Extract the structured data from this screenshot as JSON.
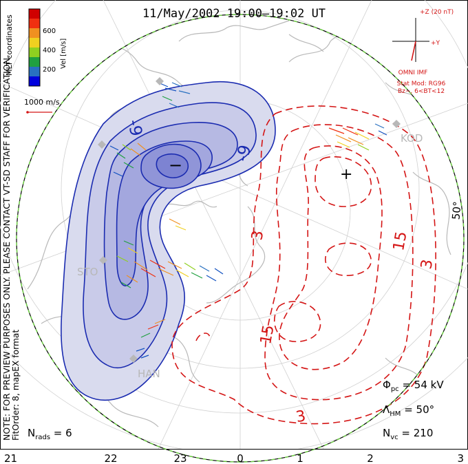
{
  "title": "11/May/2002  19:00–19:02  UT",
  "colorbar": {
    "ticks": [
      "600",
      "400",
      "200"
    ],
    "unit_label": "Vel [m/s]",
    "colors": [
      "#0000dd",
      "#2870c0",
      "#20a040",
      "#90d020",
      "#f0d020",
      "#f09020",
      "#f03010",
      "#d00000"
    ]
  },
  "coords_label": "MLT coordinates",
  "scale_label": "1000 m/s",
  "side_note_1": "NOTE: FOR PREVIEW PURPOSES ONLY. PLEASE CONTACT VT-SD STAFF FOR VERIFICATION.",
  "side_note_2": "FitOrder: 8, mapEX format",
  "imf": {
    "z_label": "+Z (20 nT)",
    "y_label": "+Y",
    "source": "OMNI IMF",
    "stat_mod": "Stat Mod: RG96",
    "condition": "Bz−, 6<BT<12"
  },
  "contour_labels": [
    "-9",
    "-9",
    "3",
    "3",
    "15",
    "15",
    "3"
  ],
  "cell_markers": {
    "min": "−",
    "max": "+"
  },
  "stations": [
    "KOD",
    "STO",
    "HAN"
  ],
  "latitude_label": "50°",
  "n_rads": {
    "label": "N",
    "sub": "rads",
    "value": " = 6"
  },
  "phi_pc": {
    "label": "Φ",
    "sub": "pc",
    "value": " = 54 kV"
  },
  "lambda_hm": {
    "label": "Λ",
    "sub": "HM",
    "value": " = 50°"
  },
  "n_vc": {
    "label": "N",
    "sub": "vc",
    "value": " = 210"
  },
  "mlt_ticks": [
    "21",
    "22",
    "23",
    "0",
    "1",
    "2",
    "3"
  ],
  "colors": {
    "negative_contour": "#1a2bb0",
    "positive_contour": "#d41414",
    "boundary": "#6bd040"
  }
}
